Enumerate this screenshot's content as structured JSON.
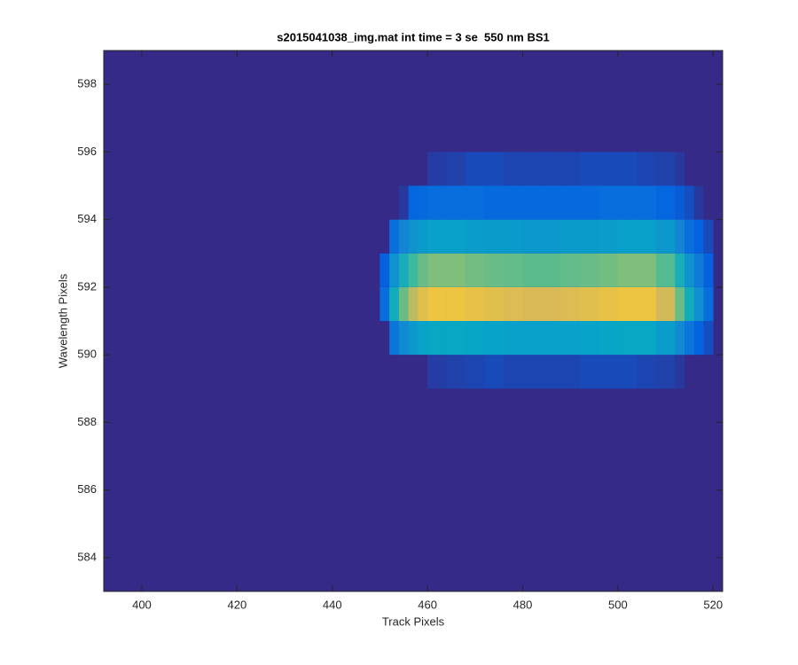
{
  "chart_data": {
    "type": "heatmap",
    "title": "s2015041038_img.mat int time = 3 se  550 nm BS1",
    "x_label": "Track Pixels",
    "y_label": "Wavelength Pixels",
    "xlim": [
      392,
      522
    ],
    "ylim": [
      583,
      599
    ],
    "xticks": [
      400,
      420,
      440,
      460,
      480,
      500,
      520
    ],
    "yticks": [
      584,
      586,
      588,
      590,
      592,
      594,
      596,
      598
    ],
    "x_bins": [
      450,
      452,
      454,
      456,
      458,
      460,
      464,
      468,
      472,
      476,
      480,
      484,
      488,
      492,
      496,
      500,
      504,
      508,
      512,
      514,
      516,
      518,
      520
    ],
    "y_bins": [
      589,
      590,
      591,
      592,
      593,
      594,
      595,
      596
    ],
    "clim": [
      0,
      1
    ],
    "colormap": [
      "#352a87",
      "#0363e1",
      "#1485d4",
      "#06a7c6",
      "#38b99e",
      "#92bf73",
      "#d9ba56",
      "#fcce2e",
      "#f9fb0e"
    ],
    "values": [
      [
        0,
        0,
        0,
        0,
        0,
        0.04,
        0.05,
        0.06,
        0.07,
        0.06,
        0.06,
        0.06,
        0.06,
        0.07,
        0.07,
        0.07,
        0.06,
        0.05,
        0.03,
        0,
        0,
        0
      ],
      [
        0,
        0.19,
        0.27,
        0.32,
        0.36,
        0.38,
        0.38,
        0.37,
        0.36,
        0.35,
        0.35,
        0.35,
        0.35,
        0.36,
        0.37,
        0.38,
        0.38,
        0.34,
        0.27,
        0.19,
        0.13,
        0.08
      ],
      [
        0.16,
        0.41,
        0.57,
        0.7,
        0.78,
        0.82,
        0.82,
        0.8,
        0.78,
        0.76,
        0.75,
        0.75,
        0.76,
        0.78,
        0.8,
        0.82,
        0.82,
        0.74,
        0.57,
        0.41,
        0.29,
        0.16
      ],
      [
        0.12,
        0.3,
        0.42,
        0.51,
        0.57,
        0.6,
        0.6,
        0.58,
        0.57,
        0.56,
        0.55,
        0.55,
        0.56,
        0.57,
        0.58,
        0.6,
        0.6,
        0.54,
        0.42,
        0.3,
        0.21,
        0.12
      ],
      [
        0,
        0.17,
        0.25,
        0.3,
        0.33,
        0.35,
        0.35,
        0.34,
        0.33,
        0.33,
        0.32,
        0.32,
        0.33,
        0.33,
        0.34,
        0.35,
        0.35,
        0.32,
        0.25,
        0.17,
        0.12,
        0.07
      ],
      [
        0,
        0,
        0.03,
        0.14,
        0.15,
        0.16,
        0.16,
        0.16,
        0.15,
        0.15,
        0.15,
        0.15,
        0.15,
        0.15,
        0.16,
        0.16,
        0.16,
        0.14,
        0.11,
        0.08,
        0.03,
        0
      ],
      [
        0,
        0,
        0,
        0,
        0,
        0.04,
        0.05,
        0.07,
        0.07,
        0.06,
        0.06,
        0.06,
        0.06,
        0.07,
        0.07,
        0.07,
        0.06,
        0.05,
        0.03,
        0,
        0,
        0
      ]
    ]
  }
}
